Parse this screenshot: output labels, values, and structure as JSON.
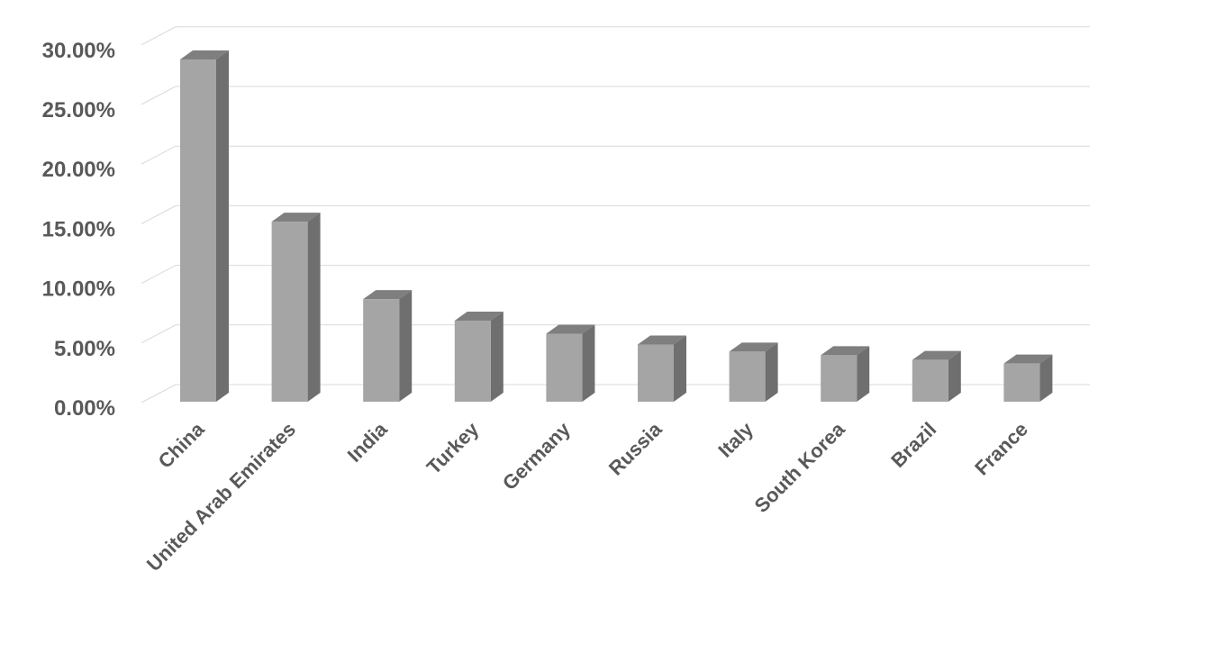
{
  "chart_data": {
    "type": "bar",
    "style": "3d-column",
    "title": "",
    "xlabel": "",
    "ylabel": "",
    "categories": [
      "China",
      "United Arab Emirates",
      "India",
      "Turkey",
      "Germany",
      "Russia",
      "Italy",
      "South Korea",
      "Brazil",
      "France"
    ],
    "values": [
      28.7,
      15.1,
      8.6,
      6.8,
      5.7,
      4.8,
      4.2,
      3.9,
      3.5,
      3.2
    ],
    "unit": "%",
    "ylim": [
      0,
      30
    ],
    "yticks": [
      "0.00%",
      "5.00%",
      "10.00%",
      "15.00%",
      "20.00%",
      "25.00%",
      "30.00%"
    ],
    "grid": true,
    "legend": "none",
    "colors": {
      "front": "#a5a5a5",
      "side": "#6f6f6f",
      "top": "#7f7f7f",
      "grid": "#d9d9d9",
      "text": "#595959"
    }
  }
}
